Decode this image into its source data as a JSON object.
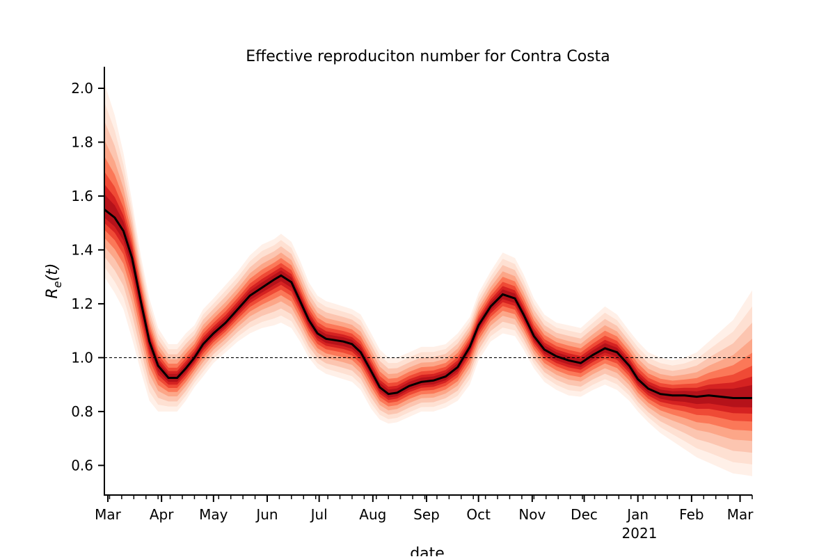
{
  "chart_data": {
    "type": "line",
    "title": "Effective reproduciton number for Contra Costa",
    "xlabel": "date",
    "ylabel": "R_e(t)",
    "ylim": [
      0.49,
      2.08
    ],
    "xlim": [
      "2020-02-28",
      "2021-03-08"
    ],
    "y_ticks": [
      0.6,
      0.8,
      1.0,
      1.2,
      1.4,
      1.6,
      1.8,
      2.0
    ],
    "y_tick_labels": [
      "0.6",
      "0.8",
      "1.0",
      "1.2",
      "1.4",
      "1.6",
      "1.8",
      "2.0"
    ],
    "x_ticks": [
      "2020-03-01",
      "2020-04-01",
      "2020-05-01",
      "2020-06-01",
      "2020-07-01",
      "2020-08-01",
      "2020-09-01",
      "2020-10-01",
      "2020-11-01",
      "2020-12-01",
      "2021-01-01",
      "2021-02-01",
      "2021-03-01"
    ],
    "x_tick_labels": [
      "Mar",
      "Apr",
      "May",
      "Jun",
      "Jul",
      "Aug",
      "Sep",
      "Oct",
      "Nov",
      "Dec",
      "Jan",
      "Feb",
      "Mar"
    ],
    "x_tick_year_label": "2021",
    "reference_line": 1.0,
    "grid": false,
    "colors": {
      "median_line": "#000000",
      "band_core": "#c8161b",
      "band_outer": "#fee6dc",
      "reference_line": "#000000"
    },
    "series": [
      {
        "x": [
          "2020-02-28",
          "2020-03-05",
          "2020-03-10",
          "2020-03-15",
          "2020-03-20",
          "2020-03-25",
          "2020-03-30",
          "2020-04-05",
          "2020-04-10",
          "2020-04-15",
          "2020-04-20",
          "2020-04-25",
          "2020-05-01",
          "2020-05-08",
          "2020-05-15",
          "2020-05-22",
          "2020-05-29",
          "2020-06-05",
          "2020-06-09",
          "2020-06-15",
          "2020-06-20",
          "2020-06-25",
          "2020-06-30",
          "2020-07-05",
          "2020-07-10",
          "2020-07-15",
          "2020-07-20",
          "2020-07-25",
          "2020-07-31",
          "2020-08-05",
          "2020-08-10",
          "2020-08-15",
          "2020-08-22",
          "2020-08-29",
          "2020-09-05",
          "2020-09-12",
          "2020-09-19",
          "2020-09-26",
          "2020-10-01",
          "2020-10-08",
          "2020-10-15",
          "2020-10-22",
          "2020-10-27",
          "2020-11-02",
          "2020-11-08",
          "2020-11-15",
          "2020-11-22",
          "2020-11-29",
          "2020-12-06",
          "2020-12-13",
          "2020-12-20",
          "2020-12-27",
          "2021-01-01",
          "2021-01-07",
          "2021-01-14",
          "2021-01-21",
          "2021-01-28",
          "2021-02-04",
          "2021-02-11",
          "2021-02-18",
          "2021-02-25",
          "2021-03-03",
          "2021-03-08"
        ],
        "median": [
          1.55,
          1.52,
          1.47,
          1.37,
          1.21,
          1.06,
          0.97,
          0.925,
          0.925,
          0.96,
          1.0,
          1.05,
          1.09,
          1.13,
          1.18,
          1.23,
          1.26,
          1.29,
          1.305,
          1.28,
          1.21,
          1.14,
          1.09,
          1.07,
          1.065,
          1.06,
          1.05,
          1.02,
          0.95,
          0.89,
          0.865,
          0.87,
          0.895,
          0.91,
          0.915,
          0.93,
          0.965,
          1.04,
          1.12,
          1.19,
          1.235,
          1.22,
          1.16,
          1.08,
          1.03,
          1.005,
          0.99,
          0.98,
          1.01,
          1.035,
          1.02,
          0.97,
          0.92,
          0.885,
          0.865,
          0.86,
          0.86,
          0.855,
          0.86,
          0.855,
          0.85,
          0.85,
          0.85
        ],
        "lower": [
          1.3,
          1.24,
          1.18,
          1.07,
          0.95,
          0.84,
          0.8,
          0.8,
          0.8,
          0.84,
          0.89,
          0.93,
          0.98,
          1.02,
          1.06,
          1.09,
          1.11,
          1.12,
          1.13,
          1.11,
          1.06,
          1.0,
          0.96,
          0.94,
          0.93,
          0.92,
          0.91,
          0.88,
          0.81,
          0.77,
          0.755,
          0.76,
          0.78,
          0.8,
          0.8,
          0.815,
          0.84,
          0.9,
          0.99,
          1.06,
          1.09,
          1.08,
          1.03,
          0.96,
          0.91,
          0.88,
          0.86,
          0.855,
          0.88,
          0.9,
          0.88,
          0.84,
          0.8,
          0.76,
          0.72,
          0.69,
          0.66,
          0.63,
          0.61,
          0.59,
          0.57,
          0.565,
          0.56
        ],
        "upper": [
          2.02,
          1.9,
          1.76,
          1.58,
          1.38,
          1.22,
          1.11,
          1.05,
          1.05,
          1.09,
          1.12,
          1.18,
          1.22,
          1.27,
          1.32,
          1.38,
          1.42,
          1.44,
          1.46,
          1.43,
          1.36,
          1.28,
          1.23,
          1.21,
          1.2,
          1.19,
          1.18,
          1.16,
          1.09,
          1.03,
          1.0,
          1.0,
          1.02,
          1.04,
          1.04,
          1.05,
          1.09,
          1.15,
          1.24,
          1.32,
          1.39,
          1.37,
          1.31,
          1.22,
          1.16,
          1.13,
          1.12,
          1.11,
          1.15,
          1.19,
          1.16,
          1.1,
          1.06,
          1.02,
          1.0,
          0.99,
          1.0,
          1.02,
          1.06,
          1.1,
          1.14,
          1.2,
          1.25
        ]
      }
    ]
  }
}
